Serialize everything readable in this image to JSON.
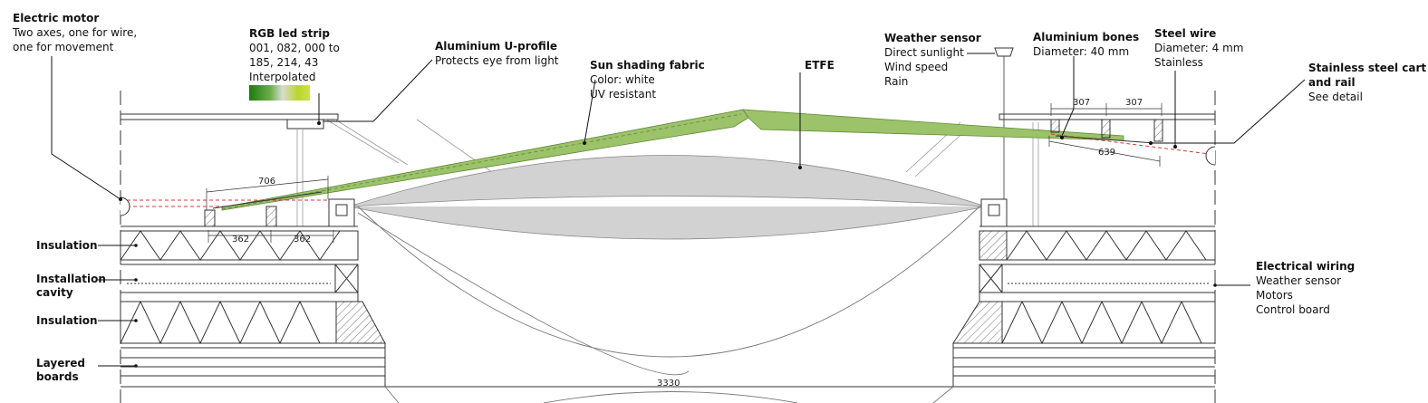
{
  "labels": {
    "electric_motor": {
      "title": "Electric motor",
      "lines": [
        "Two axes, one for wire,",
        "one for movement"
      ]
    },
    "rgb_led": {
      "title": "RGB led strip",
      "lines": [
        "001, 082, 000 to",
        "185, 214, 43",
        "Interpolated"
      ]
    },
    "u_profile": {
      "title": "Aluminium U-profile",
      "lines": [
        "Protects eye from light"
      ]
    },
    "sun_fabric": {
      "title": "Sun shading fabric",
      "lines": [
        "Color: white",
        "UV resistant"
      ]
    },
    "etfe": {
      "title": "ETFE",
      "lines": []
    },
    "weather_sensor": {
      "title": "Weather sensor",
      "lines": [
        "Direct sunlight",
        "Wind speed",
        "Rain"
      ]
    },
    "al_bones": {
      "title": "Aluminium bones",
      "lines": [
        "Diameter: 40 mm"
      ]
    },
    "steel_wire": {
      "title": "Steel wire",
      "lines": [
        "Diameter: 4 mm",
        "Stainless"
      ]
    },
    "cart_rail": {
      "title": "Stainless steel cart and rail",
      "title_line1": "Stainless steel cart",
      "title_line2": "and rail",
      "lines": [
        "See detail"
      ]
    },
    "electrical_wiring": {
      "title": "Electrical wiring",
      "lines": [
        "Weather sensor",
        "Motors",
        "Control board"
      ]
    }
  },
  "layers": {
    "insulation_top": "Insulation",
    "installation_cavity_1": "Installation",
    "installation_cavity_2": "cavity",
    "insulation_bottom": "Insulation",
    "layered_boards_1": "Layered",
    "layered_boards_2": "boards"
  },
  "dimensions": {
    "d706": "706",
    "d362a": "362",
    "d362b": "362",
    "d307a": "307",
    "d307b": "307",
    "d639": "639",
    "d3330": "3330"
  },
  "colors": {
    "fabric_green": "#9cc26a",
    "fabric_stroke": "#5f8a35",
    "etfe_grey": "#d2d2d2",
    "led_start": "#015200",
    "led_end": "#b9d62b",
    "red_dash": "#d23b3b"
  }
}
